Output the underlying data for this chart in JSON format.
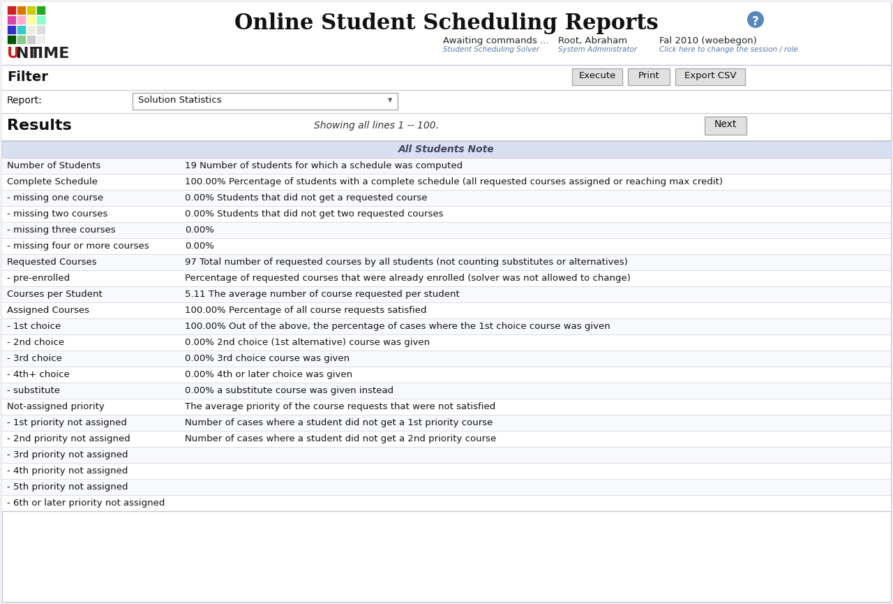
{
  "title": "Online Student Scheduling Reports",
  "header_info": {
    "col1_label": "Awaiting commands ...",
    "col1_sub": "Student Scheduling Solver",
    "col2_label": "Root, Abraham",
    "col2_sub": "System Administrator",
    "col3_label": "Fal 2010 (woebegon)",
    "col3_sub": "Click here to change the session / role."
  },
  "filter_label": "Filter",
  "report_label": "Report:",
  "report_value": "Solution Statistics",
  "results_label": "Results",
  "showing_text": "Showing all lines 1 -- 100.",
  "buttons": [
    "Execute",
    "Print",
    "Export CSV"
  ],
  "next_button": "Next",
  "section_header": "All Students Note",
  "table_rows": [
    {
      "col1": "Number of Students",
      "col2": "19 Number of students for which a schedule was computed"
    },
    {
      "col1": "Complete Schedule",
      "col2": "100.00% Percentage of students with a complete schedule (all requested courses assigned or reaching max credit)"
    },
    {
      "col1": "- missing one course",
      "col2": "0.00% Students that did not get a requested course"
    },
    {
      "col1": "- missing two courses",
      "col2": "0.00% Students that did not get two requested courses"
    },
    {
      "col1": "- missing three courses",
      "col2": "0.00%"
    },
    {
      "col1": "- missing four or more courses",
      "col2": "0.00%"
    },
    {
      "col1": "Requested Courses",
      "col2": "97 Total number of requested courses by all students (not counting substitutes or alternatives)"
    },
    {
      "col1": "- pre-enrolled",
      "col2": "Percentage of requested courses that were already enrolled (solver was not allowed to change)"
    },
    {
      "col1": "Courses per Student",
      "col2": "5.11 The average number of course requested per student"
    },
    {
      "col1": "Assigned Courses",
      "col2": "100.00% Percentage of all course requests satisfied"
    },
    {
      "col1": "- 1st choice",
      "col2": "100.00% Out of the above, the percentage of cases where the 1st choice course was given"
    },
    {
      "col1": "- 2nd choice",
      "col2": "0.00% 2nd choice (1st alternative) course was given"
    },
    {
      "col1": "- 3rd choice",
      "col2": "0.00% 3rd choice course was given"
    },
    {
      "col1": "- 4th+ choice",
      "col2": "0.00% 4th or later choice was given"
    },
    {
      "col1": "- substitute",
      "col2": "0.00% a substitute course was given instead"
    },
    {
      "col1": "Not-assigned priority",
      "col2": "The average priority of the course requests that were not satisfied"
    },
    {
      "col1": "- 1st priority not assigned",
      "col2": "Number of cases where a student did not get a 1st priority course"
    },
    {
      "col1": "- 2nd priority not assigned",
      "col2": "Number of cases where a student did not get a 2nd priority course"
    },
    {
      "col1": "- 3rd priority not assigned",
      "col2": ""
    },
    {
      "col1": "- 4th priority not assigned",
      "col2": ""
    },
    {
      "col1": "- 5th priority not assigned",
      "col2": ""
    },
    {
      "col1": "- 6th or later priority not assigned",
      "col2": ""
    }
  ],
  "logo_blocks": [
    [
      "#dd2222",
      "#dd7722",
      "#dddd00",
      "#22aa22",
      "#2255cc",
      "#aaaaaa"
    ],
    [
      "#ee44aa",
      "#ffaacc",
      "#ffff88",
      "#aaffcc",
      "#44cccc",
      "#cccccc"
    ],
    [
      "#3344cc",
      "#33cccc",
      "#eeeedd",
      "#ffffff",
      "#ffffff",
      "#ffffff"
    ],
    [
      "#006600",
      "#88cc88",
      "#cccccc",
      "#ffffff",
      "#ffffff",
      "#ffffff"
    ],
    [
      "#555588",
      "#8888aa",
      "#ffffff",
      "#ffffff",
      "#ffffff",
      "#ffffff"
    ]
  ],
  "border_color": "#c8c8d8",
  "header_bg": "#ffffff",
  "table_header_bg": "#d8dff0",
  "table_header_text": "#444466",
  "row_line_color": "#d0d0d8",
  "button_bg": "#e0e0e0",
  "button_border": "#aaaaaa",
  "dropdown_border": "#aaaaaa",
  "link_color": "#5577aa",
  "text_color": "#111111",
  "sub_text_color": "#888888"
}
